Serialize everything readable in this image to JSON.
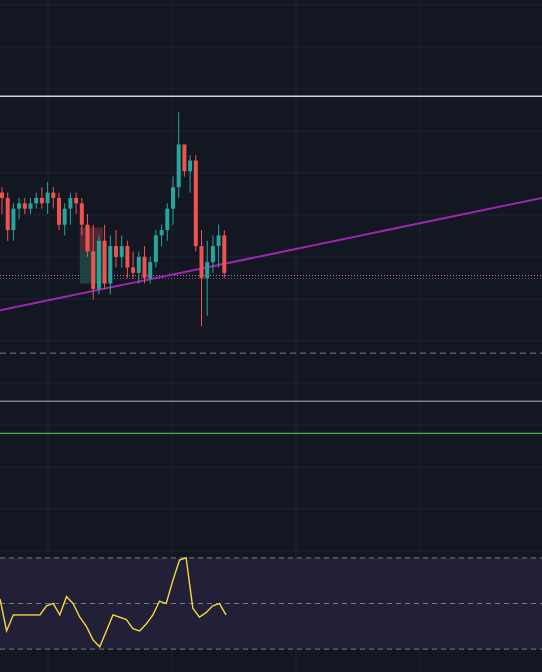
{
  "colors": {
    "background": "#131722",
    "grid": "#1f2330",
    "bull": "#26a69a",
    "bear": "#ef5350",
    "trendline": "#9c27b0",
    "resistance_line": "#d1d4dc",
    "support_line": "#9598a1",
    "green_line": "#4caf50",
    "dashed_line": "#787b86",
    "price_dotted_line": "#c76bd4",
    "rsi_line": "#f5d742",
    "rsi_band": "#24213a",
    "rsi_band_line": "#787b86",
    "position_risk": "#5a2a35",
    "position_reward": "#1e4a46"
  },
  "chart_data": [
    {
      "type": "candlestick",
      "title": "",
      "xlabel": "",
      "ylabel": "",
      "grid": true,
      "ylim": [
        0,
        100
      ],
      "candles": [
        {
          "o": 64,
          "h": 65,
          "l": 60,
          "c": 63
        },
        {
          "o": 63,
          "h": 64,
          "l": 55,
          "c": 57
        },
        {
          "o": 57,
          "h": 62,
          "l": 55,
          "c": 61
        },
        {
          "o": 61,
          "h": 63,
          "l": 59,
          "c": 62
        },
        {
          "o": 62,
          "h": 63,
          "l": 60,
          "c": 61
        },
        {
          "o": 61,
          "h": 63,
          "l": 60,
          "c": 62
        },
        {
          "o": 62,
          "h": 64,
          "l": 61,
          "c": 63
        },
        {
          "o": 63,
          "h": 65,
          "l": 61,
          "c": 62
        },
        {
          "o": 62,
          "h": 66,
          "l": 60,
          "c": 64
        },
        {
          "o": 64,
          "h": 65,
          "l": 61,
          "c": 63
        },
        {
          "o": 63,
          "h": 64,
          "l": 57,
          "c": 58
        },
        {
          "o": 58,
          "h": 62,
          "l": 56,
          "c": 61
        },
        {
          "o": 61,
          "h": 64,
          "l": 58,
          "c": 63
        },
        {
          "o": 63,
          "h": 64,
          "l": 60,
          "c": 62
        },
        {
          "o": 62,
          "h": 63,
          "l": 56,
          "c": 58
        },
        {
          "o": 58,
          "h": 60,
          "l": 52,
          "c": 53
        },
        {
          "o": 53,
          "h": 58,
          "l": 44,
          "c": 46
        },
        {
          "o": 46,
          "h": 56,
          "l": 45,
          "c": 55
        },
        {
          "o": 55,
          "h": 58,
          "l": 46,
          "c": 47
        },
        {
          "o": 47,
          "h": 56,
          "l": 45,
          "c": 54
        },
        {
          "o": 54,
          "h": 57,
          "l": 50,
          "c": 52
        },
        {
          "o": 52,
          "h": 56,
          "l": 50,
          "c": 54
        },
        {
          "o": 54,
          "h": 55,
          "l": 48,
          "c": 50
        },
        {
          "o": 50,
          "h": 53,
          "l": 48,
          "c": 49
        },
        {
          "o": 49,
          "h": 53,
          "l": 47,
          "c": 52
        },
        {
          "o": 52,
          "h": 54,
          "l": 47,
          "c": 48
        },
        {
          "o": 48,
          "h": 52,
          "l": 47,
          "c": 51
        },
        {
          "o": 51,
          "h": 57,
          "l": 50,
          "c": 56
        },
        {
          "o": 56,
          "h": 58,
          "l": 54,
          "c": 57
        },
        {
          "o": 57,
          "h": 62,
          "l": 55,
          "c": 61
        },
        {
          "o": 61,
          "h": 67,
          "l": 58,
          "c": 65
        },
        {
          "o": 65,
          "h": 79,
          "l": 63,
          "c": 73
        },
        {
          "o": 73,
          "h": 73,
          "l": 67,
          "c": 68
        },
        {
          "o": 68,
          "h": 71,
          "l": 64,
          "c": 70
        },
        {
          "o": 70,
          "h": 71,
          "l": 53,
          "c": 54
        },
        {
          "o": 54,
          "h": 57,
          "l": 39,
          "c": 48
        },
        {
          "o": 48,
          "h": 55,
          "l": 41,
          "c": 51
        },
        {
          "o": 51,
          "h": 56,
          "l": 49,
          "c": 54
        },
        {
          "o": 54,
          "h": 58,
          "l": 50,
          "c": 56
        },
        {
          "o": 56,
          "h": 57,
          "l": 48,
          "c": 49
        }
      ],
      "lines": {
        "resistance": 82,
        "trendline_start": 42,
        "trendline_end": 63,
        "current_price_dotted": 48.5,
        "dashed": 34,
        "support": 25,
        "green": 19
      },
      "position_tool": {
        "entry": 53,
        "stop": 57.5,
        "target": 47
      }
    },
    {
      "type": "line",
      "name": "rsi",
      "title": "",
      "ylim": [
        20,
        80
      ],
      "band": [
        30,
        70
      ],
      "midline": 50,
      "values": [
        52,
        38,
        45,
        45,
        45,
        45,
        45,
        49,
        50,
        45,
        53,
        50,
        44,
        40,
        34,
        31,
        38,
        45,
        44,
        43,
        39,
        38,
        41,
        45,
        51,
        50,
        60,
        69,
        70,
        48,
        44,
        46,
        49,
        50,
        45
      ]
    }
  ]
}
